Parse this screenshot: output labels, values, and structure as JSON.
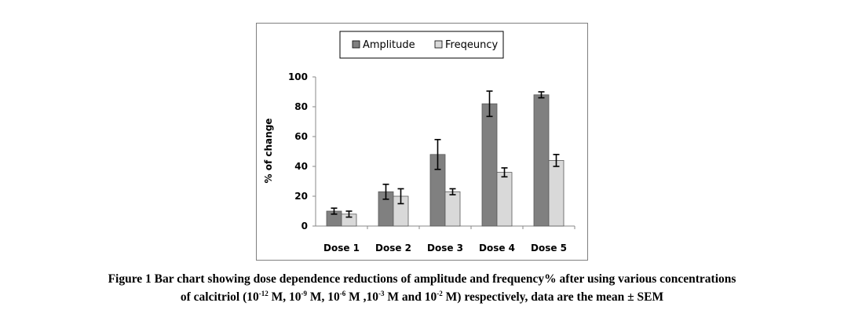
{
  "chart_data": {
    "type": "bar",
    "categories": [
      "Dose 1",
      "Dose 2",
      "Dose 3",
      "Dose 4",
      "Dose 5"
    ],
    "series": [
      {
        "name": "Amplitude",
        "values": [
          10,
          23,
          48,
          82,
          88
        ],
        "errors": [
          2,
          5,
          10,
          8.5,
          2
        ],
        "color": "#808080"
      },
      {
        "name": "Freqeuncy",
        "values": [
          8,
          20,
          23,
          36,
          44
        ],
        "errors": [
          2,
          5,
          2,
          3,
          4
        ],
        "color": "#d9d9d9"
      }
    ],
    "ylabel": "% of change",
    "ylim": [
      0,
      100
    ],
    "yticks": [
      0,
      20,
      40,
      60,
      80,
      100
    ],
    "legend_position": "top",
    "grid": false
  },
  "caption": {
    "line1": "Figure 1 Bar chart showing dose dependence reductions of amplitude and frequency% after using various concentrations",
    "line2_parts": [
      {
        "text": "of calcitriol (10"
      },
      {
        "sup": "-12"
      },
      {
        "text": " M, 10"
      },
      {
        "sup": "-9"
      },
      {
        "text": " M, 10"
      },
      {
        "sup": "-6"
      },
      {
        "text": " M ,10"
      },
      {
        "sup": "-3"
      },
      {
        "text": " M and 10"
      },
      {
        "sup": "-2"
      },
      {
        "text": " M) respectively, data are the mean ± SEM"
      }
    ]
  }
}
